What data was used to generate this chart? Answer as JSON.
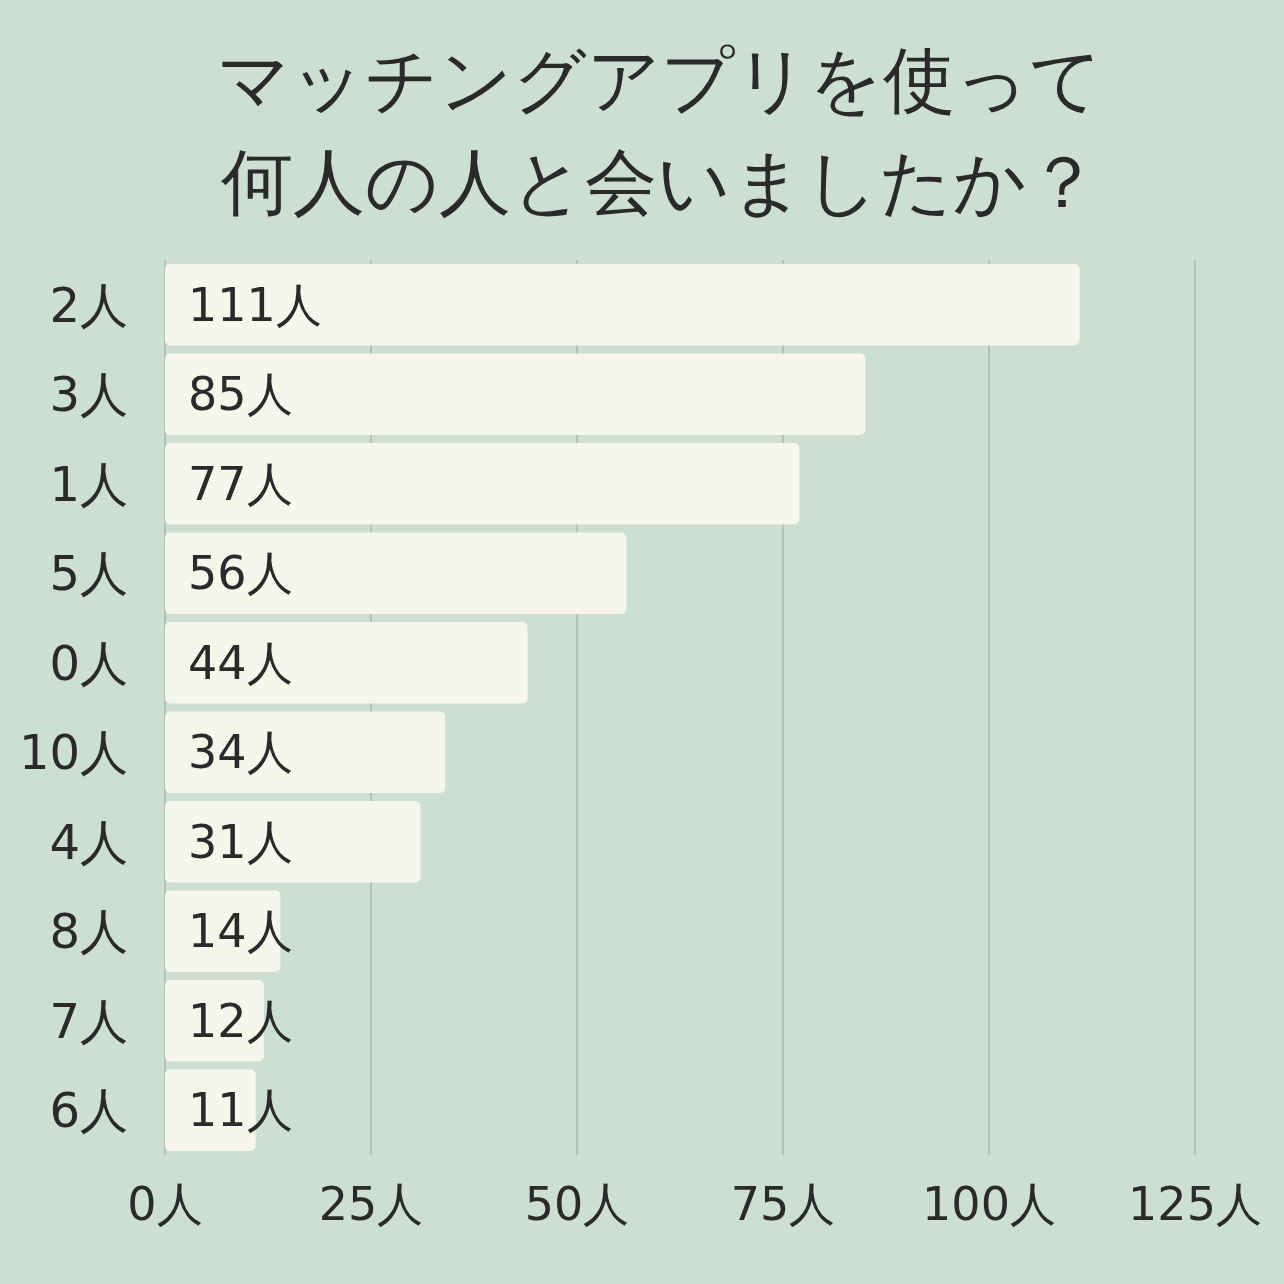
{
  "chart_data": {
    "type": "bar",
    "orientation": "horizontal",
    "title": "マッチングアプリを使って何人の人と会いましたか？",
    "categories": [
      "2人",
      "3人",
      "1人",
      "5人",
      "0人",
      "10人",
      "4人",
      "8人",
      "7人",
      "6人"
    ],
    "values": [
      111,
      85,
      77,
      56,
      44,
      34,
      31,
      14,
      12,
      11
    ],
    "value_labels": [
      "111人",
      "85人",
      "77人",
      "56人",
      "44人",
      "34人",
      "31人",
      "14人",
      "12人",
      "11人"
    ],
    "color": "#f6f6ea",
    "xlim": [
      0,
      125
    ],
    "xticks": [
      {
        "value": 0,
        "label": "0人"
      },
      {
        "value": 25,
        "label": "25人"
      },
      {
        "value": 50,
        "label": "50人"
      },
      {
        "value": 75,
        "label": "75人"
      },
      {
        "value": 100,
        "label": "100人"
      },
      {
        "value": 125,
        "label": "125人"
      }
    ],
    "grid": "x"
  }
}
